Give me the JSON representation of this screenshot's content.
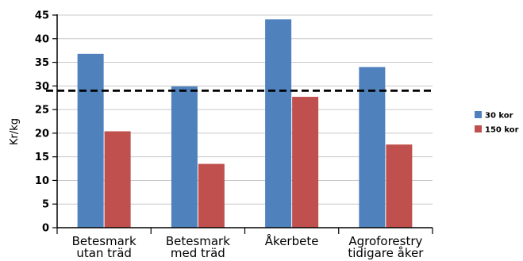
{
  "chart_data": {
    "type": "bar",
    "categories": [
      [
        "Betesmark",
        "utan träd"
      ],
      [
        "Betesmark",
        "med träd"
      ],
      [
        "Åkerbete"
      ],
      [
        "Agroforestry",
        "tidigare åker"
      ]
    ],
    "series": [
      {
        "name": "30 kor",
        "values": [
          36.8,
          29.9,
          44.1,
          34.0
        ],
        "color": "#4f81bd"
      },
      {
        "name": "150 kor",
        "values": [
          20.4,
          13.5,
          27.7,
          17.6
        ],
        "color": "#c0504d"
      }
    ],
    "reference_line": {
      "y": 29,
      "style": "dashed"
    },
    "ylabel": "Kr/kg",
    "ylim": [
      0,
      45
    ],
    "yticks": [
      0,
      5,
      10,
      15,
      20,
      25,
      30,
      35,
      40,
      45
    ],
    "grid": true,
    "legend_position": "right"
  }
}
